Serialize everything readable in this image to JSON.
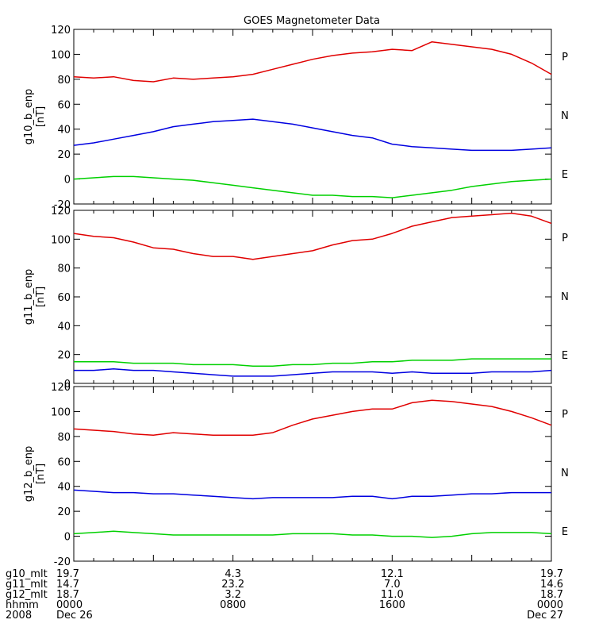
{
  "chart_data": {
    "type": "line",
    "title": "GOES Magnetometer Data",
    "x_label": "",
    "x_range": [
      0,
      24
    ],
    "panels": [
      {
        "ylabel": "g10_b_enp",
        "yunit": "[nT]",
        "ylim": [
          -20,
          120
        ],
        "yticks": [
          -20,
          0,
          20,
          40,
          60,
          80,
          100,
          120
        ],
        "legend_labels": [
          "P",
          "N",
          "E"
        ],
        "series": [
          {
            "name": "P",
            "color": "#e00000",
            "x": [
              0,
              1,
              2,
              3,
              4,
              5,
              6,
              7,
              8,
              9,
              10,
              11,
              12,
              13,
              14,
              15,
              16,
              17,
              18,
              19,
              20,
              21,
              22,
              23,
              24
            ],
            "values": [
              82,
              81,
              82,
              79,
              78,
              81,
              80,
              81,
              82,
              84,
              88,
              92,
              96,
              99,
              101,
              102,
              104,
              103,
              110,
              108,
              106,
              104,
              100,
              93,
              84
            ]
          },
          {
            "name": "N",
            "color": "#0000e0",
            "x": [
              0,
              1,
              2,
              3,
              4,
              5,
              6,
              7,
              8,
              9,
              10,
              11,
              12,
              13,
              14,
              15,
              16,
              17,
              18,
              19,
              20,
              21,
              22,
              23,
              24
            ],
            "values": [
              27,
              29,
              32,
              35,
              38,
              42,
              44,
              46,
              47,
              48,
              46,
              44,
              41,
              38,
              35,
              33,
              28,
              26,
              25,
              24,
              23,
              23,
              23,
              24,
              25
            ]
          },
          {
            "name": "E",
            "color": "#00d000",
            "x": [
              0,
              1,
              2,
              3,
              4,
              5,
              6,
              7,
              8,
              9,
              10,
              11,
              12,
              13,
              14,
              15,
              16,
              17,
              18,
              19,
              20,
              21,
              22,
              23,
              24
            ],
            "values": [
              0,
              1,
              2,
              2,
              1,
              0,
              -1,
              -3,
              -5,
              -7,
              -9,
              -11,
              -13,
              -13,
              -14,
              -14,
              -15,
              -13,
              -11,
              -9,
              -6,
              -4,
              -2,
              -1,
              0
            ]
          }
        ]
      },
      {
        "ylabel": "g11_b_enp",
        "yunit": "[nT]",
        "ylim": [
          0,
          120
        ],
        "yticks": [
          0,
          20,
          40,
          60,
          80,
          100,
          120
        ],
        "legend_labels": [
          "P",
          "N",
          "E"
        ],
        "series": [
          {
            "name": "P",
            "color": "#e00000",
            "x": [
              0,
              1,
              2,
              3,
              4,
              5,
              6,
              7,
              8,
              9,
              10,
              11,
              12,
              13,
              14,
              15,
              16,
              17,
              18,
              19,
              20,
              21,
              22,
              23,
              24
            ],
            "values": [
              104,
              102,
              101,
              98,
              94,
              93,
              90,
              88,
              88,
              86,
              88,
              90,
              92,
              96,
              99,
              100,
              104,
              109,
              112,
              115,
              116,
              117,
              118,
              116,
              111
            ]
          },
          {
            "name": "N",
            "color": "#00d000",
            "x": [
              0,
              1,
              2,
              3,
              4,
              5,
              6,
              7,
              8,
              9,
              10,
              11,
              12,
              13,
              14,
              15,
              16,
              17,
              18,
              19,
              20,
              21,
              22,
              23,
              24
            ],
            "values": [
              15,
              15,
              15,
              14,
              14,
              14,
              13,
              13,
              13,
              12,
              12,
              13,
              13,
              14,
              14,
              15,
              15,
              16,
              16,
              16,
              17,
              17,
              17,
              17,
              17
            ]
          },
          {
            "name": "E",
            "color": "#0000e0",
            "x": [
              0,
              1,
              2,
              3,
              4,
              5,
              6,
              7,
              8,
              9,
              10,
              11,
              12,
              13,
              14,
              15,
              16,
              17,
              18,
              19,
              20,
              21,
              22,
              23,
              24
            ],
            "values": [
              9,
              9,
              10,
              9,
              9,
              8,
              7,
              6,
              5,
              5,
              5,
              6,
              7,
              8,
              8,
              8,
              7,
              8,
              7,
              7,
              7,
              8,
              8,
              8,
              9
            ]
          }
        ]
      },
      {
        "ylabel": "g12_b_enp",
        "yunit": "[nT]",
        "ylim": [
          -20,
          120
        ],
        "yticks": [
          -20,
          0,
          20,
          40,
          60,
          80,
          100,
          120
        ],
        "legend_labels": [
          "P",
          "N",
          "E"
        ],
        "series": [
          {
            "name": "P",
            "color": "#e00000",
            "x": [
              0,
              1,
              2,
              3,
              4,
              5,
              6,
              7,
              8,
              9,
              10,
              11,
              12,
              13,
              14,
              15,
              16,
              17,
              18,
              19,
              20,
              21,
              22,
              23,
              24
            ],
            "values": [
              86,
              85,
              84,
              82,
              81,
              83,
              82,
              81,
              81,
              81,
              83,
              89,
              94,
              97,
              100,
              102,
              102,
              107,
              109,
              108,
              106,
              104,
              100,
              95,
              89
            ]
          },
          {
            "name": "N",
            "color": "#0000e0",
            "x": [
              0,
              1,
              2,
              3,
              4,
              5,
              6,
              7,
              8,
              9,
              10,
              11,
              12,
              13,
              14,
              15,
              16,
              17,
              18,
              19,
              20,
              21,
              22,
              23,
              24
            ],
            "values": [
              37,
              36,
              35,
              35,
              34,
              34,
              33,
              32,
              31,
              30,
              31,
              31,
              31,
              31,
              32,
              32,
              30,
              32,
              32,
              33,
              34,
              34,
              35,
              35,
              35
            ]
          },
          {
            "name": "E",
            "color": "#00d000",
            "x": [
              0,
              1,
              2,
              3,
              4,
              5,
              6,
              7,
              8,
              9,
              10,
              11,
              12,
              13,
              14,
              15,
              16,
              17,
              18,
              19,
              20,
              21,
              22,
              23,
              24
            ],
            "values": [
              2,
              3,
              4,
              3,
              2,
              1,
              1,
              1,
              1,
              1,
              1,
              2,
              2,
              2,
              1,
              1,
              0,
              0,
              -1,
              0,
              2,
              3,
              3,
              3,
              2
            ]
          }
        ]
      }
    ]
  },
  "footer": {
    "row_labels": [
      "g10_mlt",
      "g11_mlt",
      "g12_mlt",
      "hhmm",
      "2008"
    ],
    "columns": [
      {
        "x": 0,
        "values": [
          "19.7",
          "14.7",
          "18.7",
          "0000",
          "Dec 26"
        ]
      },
      {
        "x": 8,
        "values": [
          "4.3",
          "23.2",
          "3.2",
          "0800",
          ""
        ]
      },
      {
        "x": 16,
        "values": [
          "12.1",
          "7.0",
          "11.0",
          "1600",
          ""
        ]
      },
      {
        "x": 24,
        "values": [
          "19.7",
          "14.6",
          "18.7",
          "0000",
          "Dec 27"
        ]
      }
    ]
  }
}
